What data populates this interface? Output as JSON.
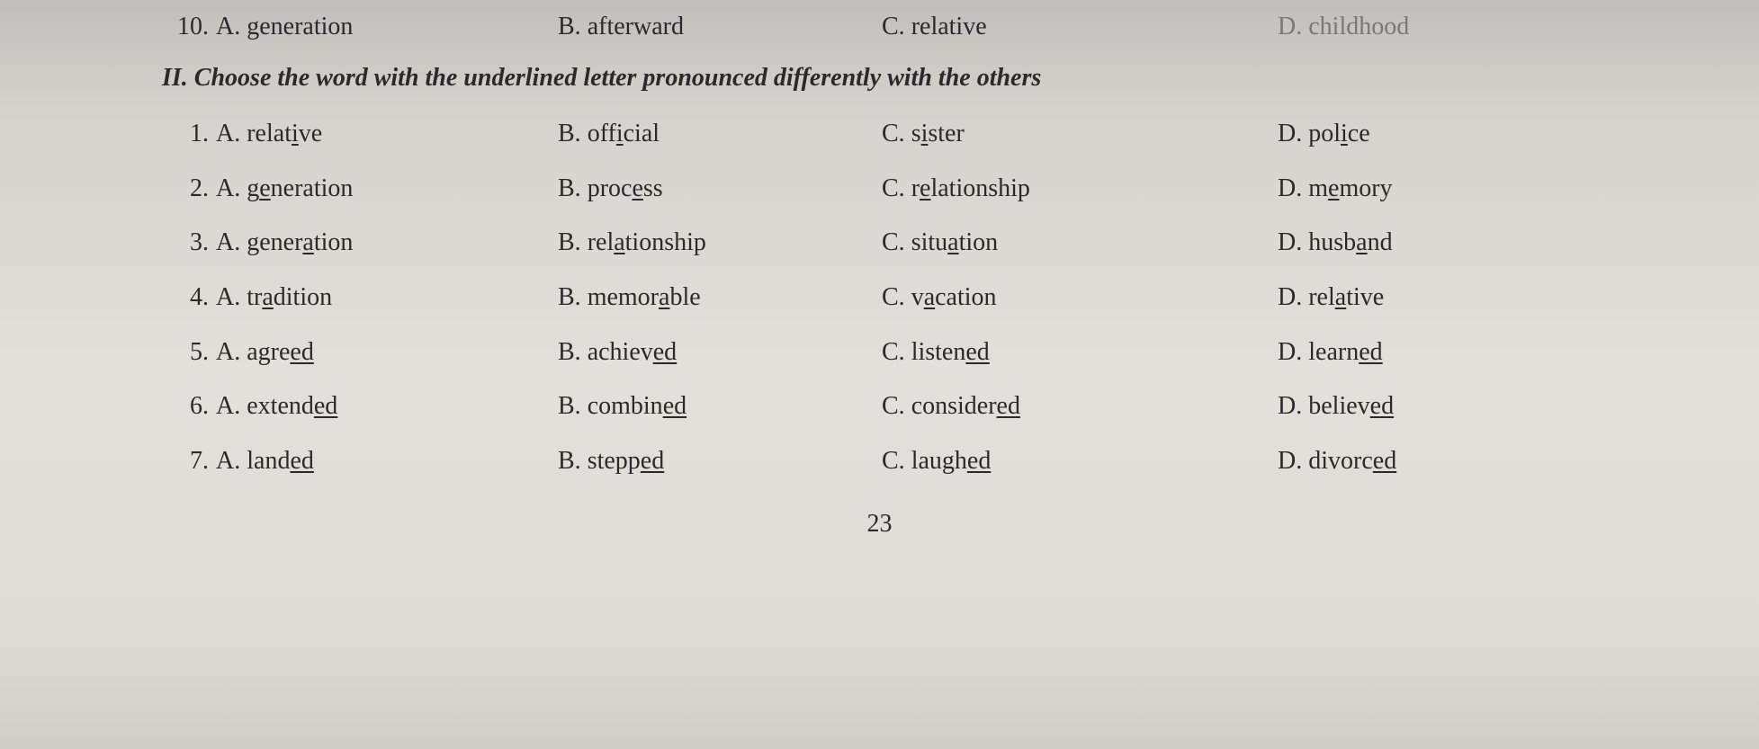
{
  "background_gradient": [
    "#c0bfbb",
    "#d5d3cd",
    "#e2e0da",
    "#dedcd6",
    "#cfcdc7"
  ],
  "text_color": "#2a2a2a",
  "font_family": "Times New Roman",
  "base_font_size": 28,
  "question_10": {
    "num": "10.",
    "a": {
      "label": "A.",
      "text": "generation"
    },
    "b": {
      "label": "B.",
      "text": "afterward"
    },
    "c": {
      "label": "C.",
      "text": "relative"
    },
    "d": {
      "label": "D.",
      "text": "childhood"
    }
  },
  "section_title": "II. Choose the word with the underlined letter pronounced differently with the others",
  "questions": [
    {
      "num": "1.",
      "a": {
        "label": "A.",
        "parts": [
          "relat",
          "i",
          "ve"
        ],
        "underline_index": 1
      },
      "b": {
        "label": "B.",
        "parts": [
          "off",
          "i",
          "cial"
        ],
        "underline_index": 1
      },
      "c": {
        "label": "C.",
        "parts": [
          "s",
          "i",
          "ster"
        ],
        "underline_index": 1
      },
      "d": {
        "label": "D.",
        "parts": [
          "pol",
          "i",
          "ce"
        ],
        "underline_index": 1
      }
    },
    {
      "num": "2.",
      "a": {
        "label": "A.",
        "parts": [
          "g",
          "e",
          "neration"
        ],
        "underline_index": 1
      },
      "b": {
        "label": "B.",
        "parts": [
          "proc",
          "e",
          "ss"
        ],
        "underline_index": 1
      },
      "c": {
        "label": "C.",
        "parts": [
          "r",
          "e",
          "lationship"
        ],
        "underline_index": 1
      },
      "d": {
        "label": "D.",
        "parts": [
          "m",
          "e",
          "mory"
        ],
        "underline_index": 1
      }
    },
    {
      "num": "3.",
      "a": {
        "label": "A.",
        "parts": [
          "gener",
          "a",
          "tion"
        ],
        "underline_index": 1
      },
      "b": {
        "label": "B.",
        "parts": [
          "rel",
          "a",
          "tionship"
        ],
        "underline_index": 1
      },
      "c": {
        "label": "C.",
        "parts": [
          "situ",
          "a",
          "tion"
        ],
        "underline_index": 1
      },
      "d": {
        "label": "D.",
        "parts": [
          "husb",
          "a",
          "nd"
        ],
        "underline_index": 1
      }
    },
    {
      "num": "4.",
      "a": {
        "label": "A.",
        "parts": [
          "tr",
          "a",
          "dition"
        ],
        "underline_index": 1
      },
      "b": {
        "label": "B.",
        "parts": [
          "memor",
          "a",
          "ble"
        ],
        "underline_index": 1
      },
      "c": {
        "label": "C.",
        "parts": [
          "v",
          "a",
          "cation"
        ],
        "underline_index": 1
      },
      "d": {
        "label": "D.",
        "parts": [
          "rel",
          "a",
          "tive"
        ],
        "underline_index": 1
      }
    },
    {
      "num": "5.",
      "a": {
        "label": "A.",
        "parts": [
          "agre",
          "ed",
          ""
        ],
        "underline_index": 1
      },
      "b": {
        "label": "B.",
        "parts": [
          "achiev",
          "ed",
          ""
        ],
        "underline_index": 1
      },
      "c": {
        "label": "C.",
        "parts": [
          "listen",
          "ed",
          ""
        ],
        "underline_index": 1
      },
      "d": {
        "label": "D.",
        "parts": [
          "learn",
          "ed",
          ""
        ],
        "underline_index": 1
      }
    },
    {
      "num": "6.",
      "a": {
        "label": "A.",
        "parts": [
          "extend",
          "ed",
          ""
        ],
        "underline_index": 1
      },
      "b": {
        "label": "B.",
        "parts": [
          "combin",
          "ed",
          ""
        ],
        "underline_index": 1
      },
      "c": {
        "label": "C.",
        "parts": [
          "consider",
          "ed",
          ""
        ],
        "underline_index": 1
      },
      "d": {
        "label": "D.",
        "parts": [
          "believ",
          "ed",
          ""
        ],
        "underline_index": 1
      }
    },
    {
      "num": "7.",
      "a": {
        "label": "A.",
        "parts": [
          "land",
          "ed",
          ""
        ],
        "underline_index": 1
      },
      "b": {
        "label": "B.",
        "parts": [
          "stepp",
          "ed",
          ""
        ],
        "underline_index": 1
      },
      "c": {
        "label": "C.",
        "parts": [
          "laugh",
          "ed",
          ""
        ],
        "underline_index": 1
      },
      "d": {
        "label": "D.",
        "parts": [
          "divorc",
          "ed",
          ""
        ],
        "underline_index": 1
      }
    }
  ],
  "page_number": "23"
}
